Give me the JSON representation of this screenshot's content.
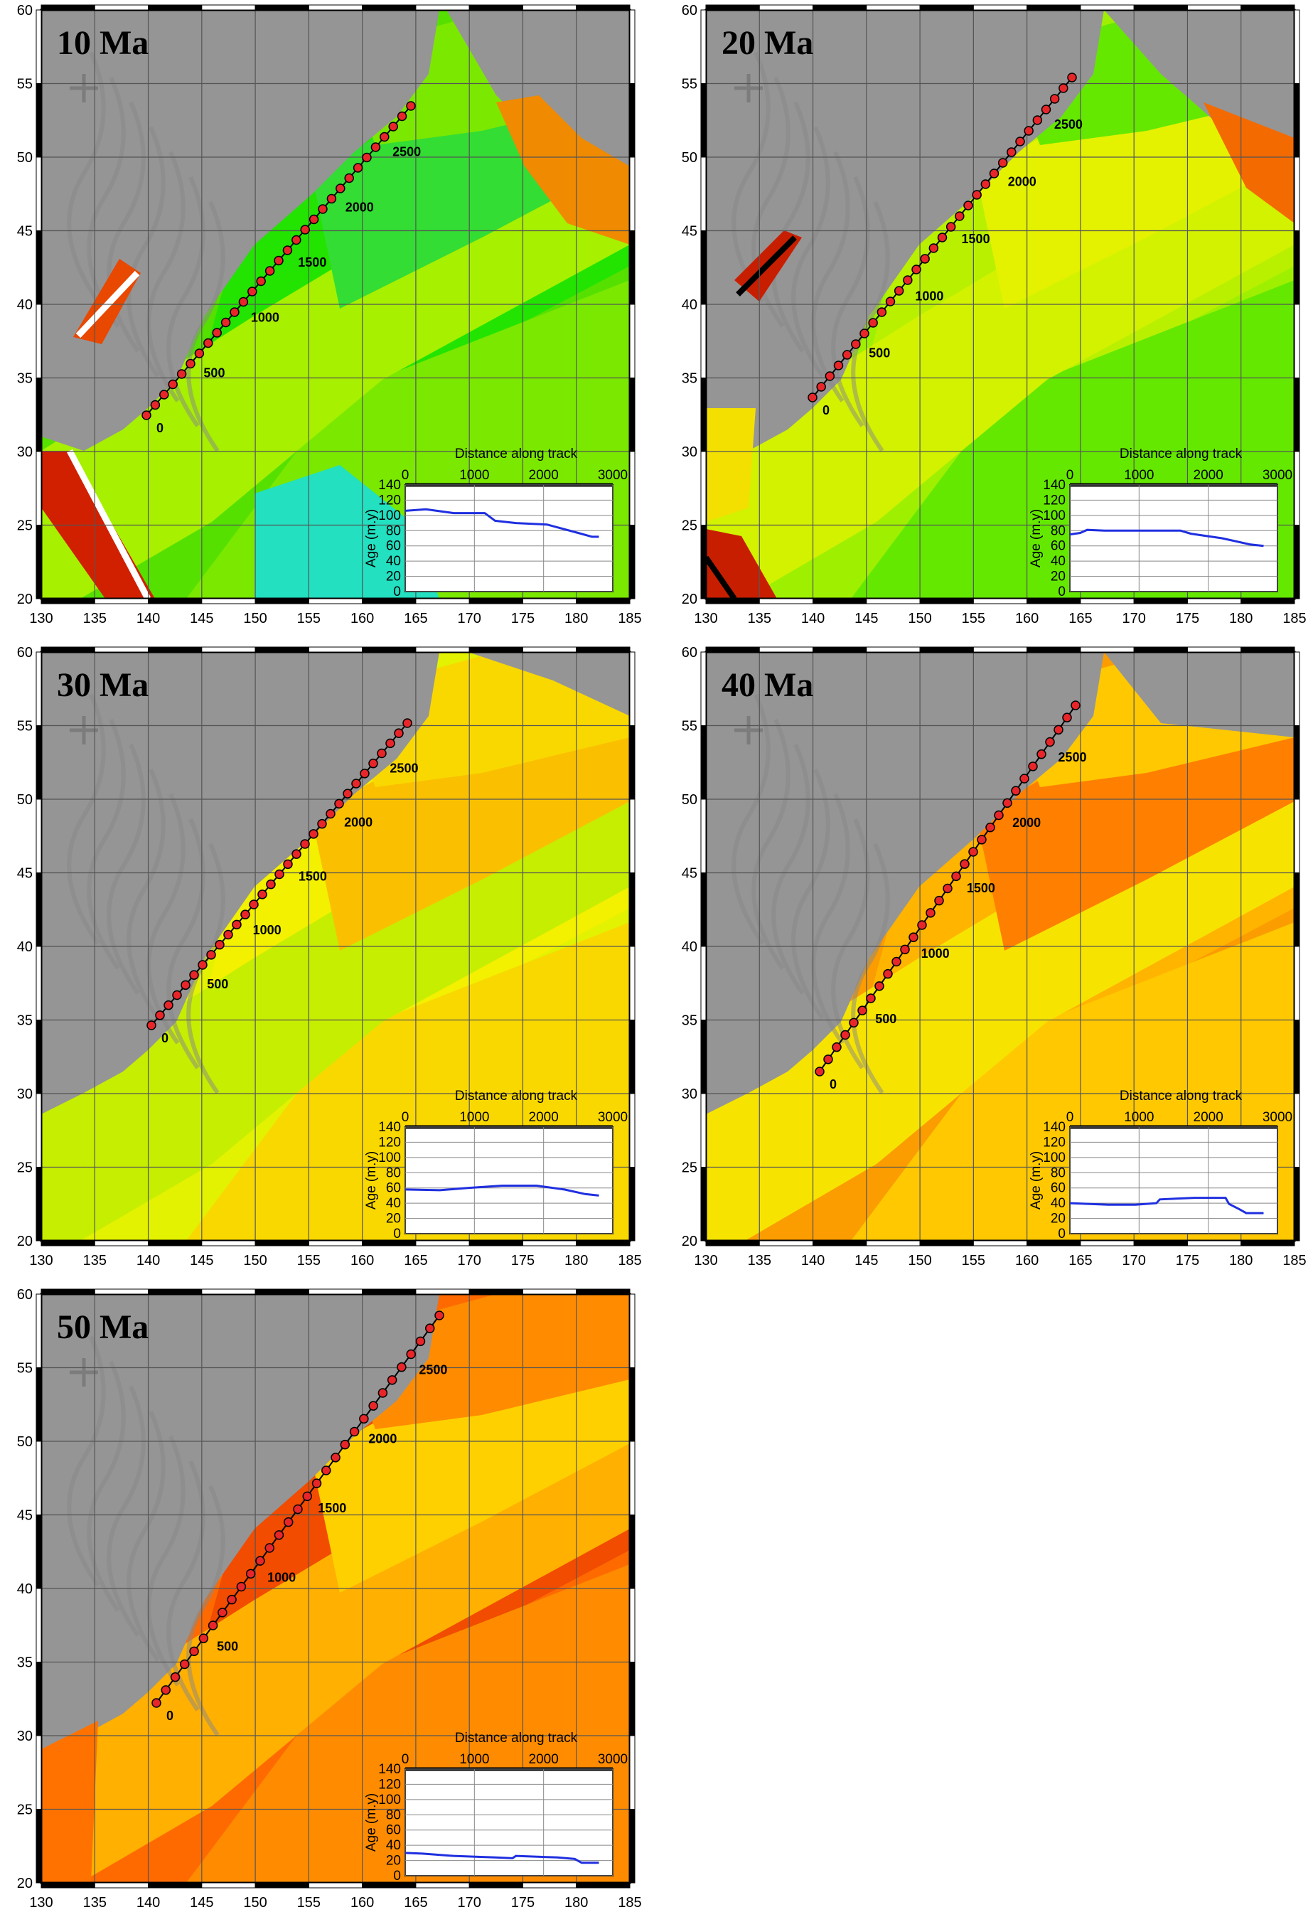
{
  "panels": [
    {
      "id": "p10",
      "title": "10 Ma",
      "coast_theme": "young",
      "profile": [
        [
          0,
          106
        ],
        [
          300,
          108
        ],
        [
          700,
          103
        ],
        [
          1150,
          103
        ],
        [
          1300,
          93
        ],
        [
          1600,
          90
        ],
        [
          2050,
          88
        ],
        [
          2500,
          77
        ],
        [
          2700,
          72
        ],
        [
          2800,
          72
        ]
      ]
    },
    {
      "id": "p20",
      "title": "20 Ma",
      "coast_theme": "mid",
      "profile": [
        [
          0,
          75
        ],
        [
          150,
          77
        ],
        [
          250,
          81
        ],
        [
          500,
          80
        ],
        [
          1600,
          80
        ],
        [
          1750,
          76
        ],
        [
          2200,
          70
        ],
        [
          2600,
          62
        ],
        [
          2800,
          60
        ]
      ]
    },
    {
      "id": "p30",
      "title": "30 Ma",
      "coast_theme": "yellow",
      "profile": [
        [
          0,
          58
        ],
        [
          500,
          57
        ],
        [
          900,
          60
        ],
        [
          1400,
          63
        ],
        [
          1900,
          63
        ],
        [
          2300,
          58
        ],
        [
          2600,
          52
        ],
        [
          2800,
          50
        ]
      ]
    },
    {
      "id": "p40",
      "title": "40 Ma",
      "coast_theme": "orange",
      "profile": [
        [
          0,
          40
        ],
        [
          550,
          38
        ],
        [
          950,
          38
        ],
        [
          1250,
          40
        ],
        [
          1300,
          45
        ],
        [
          1800,
          47
        ],
        [
          2250,
          47
        ],
        [
          2300,
          39
        ],
        [
          2450,
          32
        ],
        [
          2550,
          27
        ],
        [
          2800,
          27
        ]
      ]
    },
    {
      "id": "p50",
      "title": "50 Ma",
      "coast_theme": "red",
      "profile": [
        [
          0,
          30
        ],
        [
          250,
          29
        ],
        [
          700,
          26
        ],
        [
          1300,
          24
        ],
        [
          1550,
          23
        ],
        [
          1600,
          26
        ],
        [
          2200,
          24
        ],
        [
          2450,
          22
        ],
        [
          2550,
          17
        ],
        [
          2800,
          17
        ]
      ]
    }
  ],
  "axes": {
    "lon_ticks": [
      130,
      135,
      140,
      145,
      150,
      155,
      160,
      165,
      170,
      175,
      180,
      185
    ],
    "lat_ticks": [
      20,
      25,
      30,
      35,
      40,
      45,
      50,
      55,
      60
    ],
    "lon_range": [
      130,
      185
    ],
    "lat_range": [
      20,
      60
    ]
  },
  "inset": {
    "xlabel": "Distance along track",
    "ylabel": "Age (m.y)",
    "x_ticks": [
      0,
      1000,
      2000,
      3000
    ],
    "y_ticks": [
      0,
      20,
      40,
      60,
      80,
      100,
      120,
      140
    ],
    "x_range": [
      0,
      3000
    ],
    "y_range": [
      0,
      140
    ]
  },
  "track_labels": [
    "0",
    "500",
    "1000",
    "1500",
    "2000",
    "2500"
  ],
  "colors": {
    "land": "#959595",
    "track_dot": "#e8262a",
    "profile_line": "#1f2fe0"
  }
}
